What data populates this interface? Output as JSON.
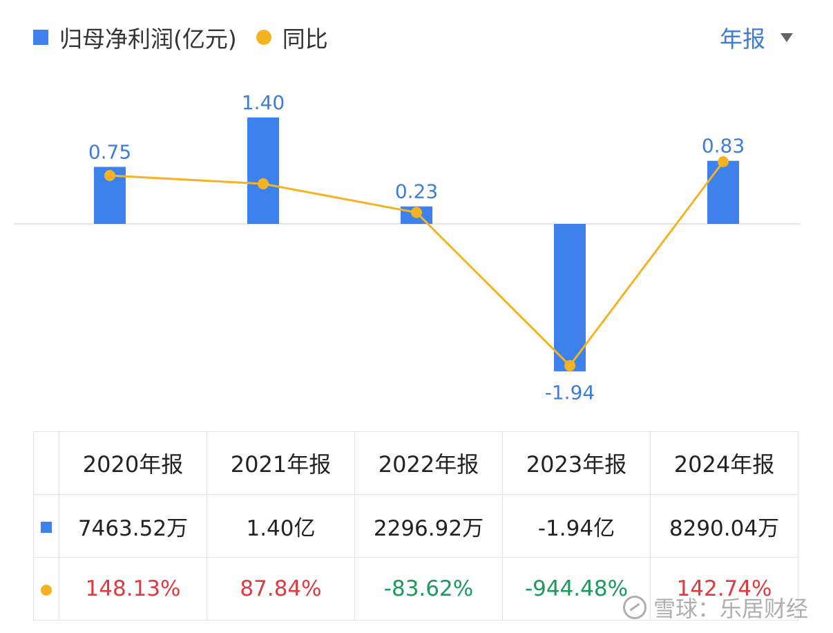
{
  "legend": {
    "bar_label": "归母净利润(亿元)",
    "line_label": "同比"
  },
  "period_selector": {
    "label": "年报"
  },
  "colors": {
    "bar": "#3d82ec",
    "line": "#f5b323",
    "positive": "#e0393e",
    "negative": "#1a9a5f",
    "label": "#3b7dd8"
  },
  "chart_data": {
    "type": "bar",
    "categories": [
      "2020年报",
      "2021年报",
      "2022年报",
      "2023年报",
      "2024年报"
    ],
    "series": [
      {
        "name": "归母净利润(亿元)",
        "type": "bar",
        "values": [
          0.75,
          1.4,
          0.23,
          -1.94,
          0.83
        ],
        "labels": [
          "0.75",
          "1.40",
          "0.23",
          "-1.94",
          "0.83"
        ]
      },
      {
        "name": "同比",
        "type": "line",
        "values": [
          148.13,
          87.84,
          -83.62,
          -944.48,
          142.74
        ]
      }
    ],
    "legend_position": "top-left"
  },
  "table": {
    "headers": [
      "2020年报",
      "2021年报",
      "2022年报",
      "2023年报",
      "2024年报"
    ],
    "profit_row": [
      "7463.52万",
      "1.40亿",
      "2296.92万",
      "-1.94亿",
      "8290.04万"
    ],
    "yoy_row": [
      "148.13%",
      "87.84%",
      "-83.62%",
      "-944.48%",
      "142.74%"
    ],
    "yoy_sign": [
      "pos",
      "pos",
      "neg",
      "neg",
      "pos"
    ]
  },
  "watermark": {
    "text": "雪球：乐居财经"
  }
}
